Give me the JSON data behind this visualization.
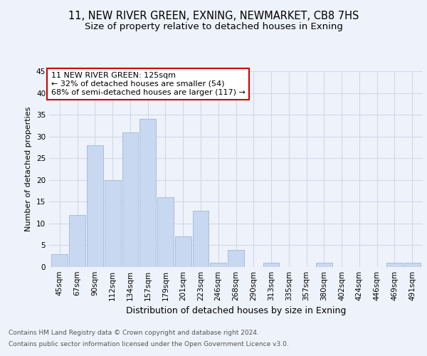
{
  "title1": "11, NEW RIVER GREEN, EXNING, NEWMARKET, CB8 7HS",
  "title2": "Size of property relative to detached houses in Exning",
  "xlabel": "Distribution of detached houses by size in Exning",
  "ylabel": "Number of detached properties",
  "categories": [
    "45sqm",
    "67sqm",
    "90sqm",
    "112sqm",
    "134sqm",
    "157sqm",
    "179sqm",
    "201sqm",
    "223sqm",
    "246sqm",
    "268sqm",
    "290sqm",
    "313sqm",
    "335sqm",
    "357sqm",
    "380sqm",
    "402sqm",
    "424sqm",
    "446sqm",
    "469sqm",
    "491sqm"
  ],
  "values": [
    3,
    12,
    28,
    20,
    31,
    34,
    16,
    7,
    13,
    1,
    4,
    0,
    1,
    0,
    0,
    1,
    0,
    0,
    0,
    1,
    1
  ],
  "bar_color": "#c8d8f0",
  "bar_edge_color": "#a0b8d8",
  "annotation_title": "11 NEW RIVER GREEN: 125sqm",
  "annotation_line1": "← 32% of detached houses are smaller (54)",
  "annotation_line2": "68% of semi-detached houses are larger (117) →",
  "annotation_box_color": "#ffffff",
  "annotation_box_edge": "#cc0000",
  "ylim": [
    0,
    45
  ],
  "yticks": [
    0,
    5,
    10,
    15,
    20,
    25,
    30,
    35,
    40,
    45
  ],
  "footer1": "Contains HM Land Registry data © Crown copyright and database right 2024.",
  "footer2": "Contains public sector information licensed under the Open Government Licence v3.0.",
  "bg_color": "#eef2fa",
  "plot_bg_color": "#eef2fa",
  "grid_color": "#d0d8e8",
  "title1_fontsize": 10.5,
  "title2_fontsize": 9.5,
  "xlabel_fontsize": 9,
  "ylabel_fontsize": 8,
  "tick_fontsize": 7.5,
  "footer_fontsize": 6.5,
  "ann_fontsize": 8
}
